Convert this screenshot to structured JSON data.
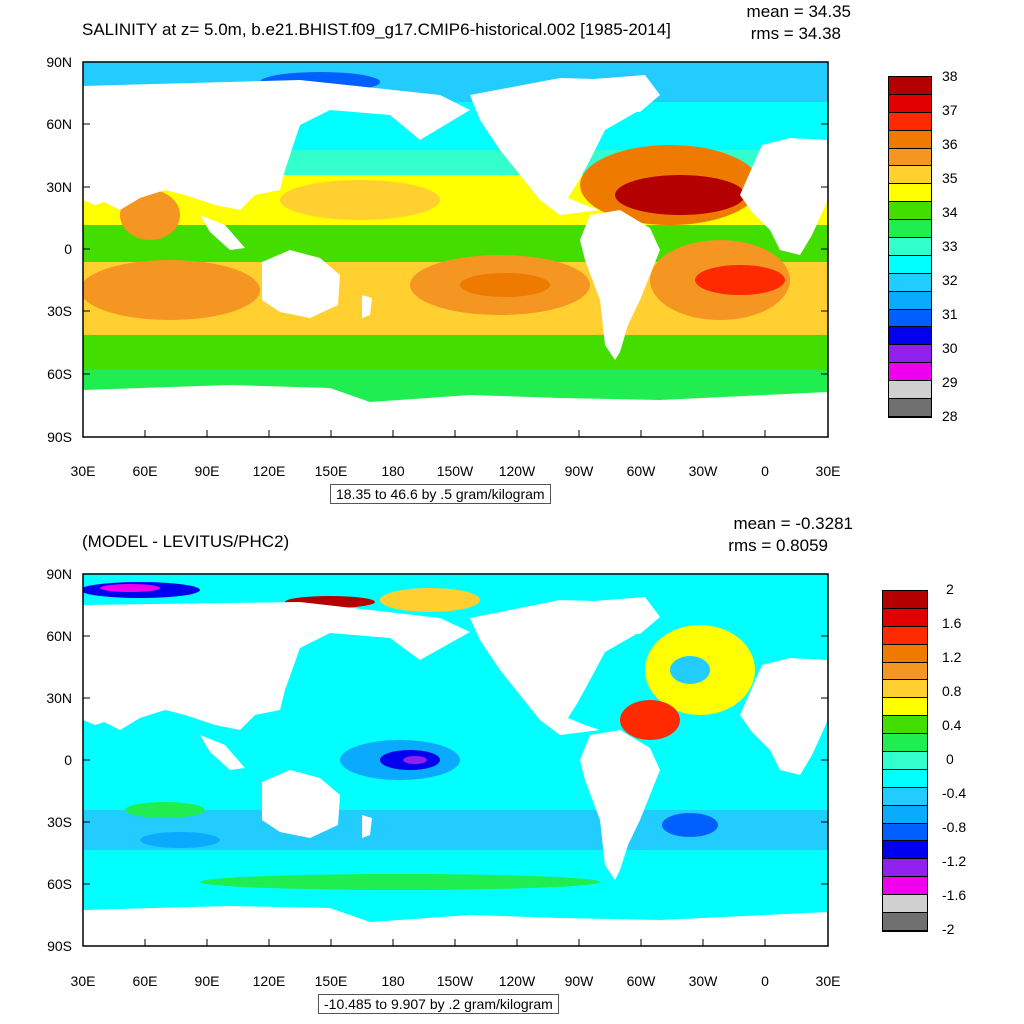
{
  "panels": [
    {
      "title": "SALINITY at z=   5.0m, b.e21.BHIST.f09_g17.CMIP6-historical.002 [1985-2014]",
      "mean": "mean = 34.35",
      "rms": "rms = 34.38",
      "range": "18.35 to 46.6 by .5 gram/kilogram",
      "colorbar": {
        "labels": [
          "38",
          "37",
          "36",
          "35",
          "34",
          "33",
          "32",
          "31",
          "30",
          "29",
          "28"
        ],
        "colors": [
          "#b50000",
          "#e00000",
          "#ff2a00",
          "#ee7a00",
          "#f59522",
          "#ffd030",
          "#ffff00",
          "#44dd00",
          "#20ee50",
          "#33ffcc",
          "#00ffff",
          "#22ccff",
          "#0aaaff",
          "#0060ff",
          "#0000ee",
          "#9020ee",
          "#ee00ee",
          "#d0d0d0",
          "#707070"
        ]
      }
    },
    {
      "title": "(MODEL - LEVITUS/PHC2)",
      "mean": "mean = -0.3281",
      "rms": "rms = 0.8059",
      "range": "-10.485 to 9.907 by .2 gram/kilogram",
      "colorbar": {
        "labels": [
          "2",
          "1.6",
          "1.2",
          "0.8",
          "0.4",
          "0",
          "-0.4",
          "-0.8",
          "-1.2",
          "-1.6",
          "-2"
        ],
        "colors": [
          "#b50000",
          "#e00000",
          "#ff2a00",
          "#ee7a00",
          "#f59522",
          "#ffd030",
          "#ffff00",
          "#44dd00",
          "#20ee50",
          "#33ffcc",
          "#00ffff",
          "#22ccff",
          "#0aaaff",
          "#0060ff",
          "#0000ee",
          "#9020ee",
          "#ee00ee",
          "#d0d0d0",
          "#707070"
        ]
      }
    }
  ],
  "axes": {
    "lon_labels": [
      "30E",
      "60E",
      "90E",
      "120E",
      "150E",
      "180",
      "150W",
      "120W",
      "90W",
      "60W",
      "30W",
      "0",
      "30E"
    ],
    "lat_labels": [
      "90N",
      "60N",
      "30N",
      "0",
      "30S",
      "60S",
      "90S"
    ]
  }
}
